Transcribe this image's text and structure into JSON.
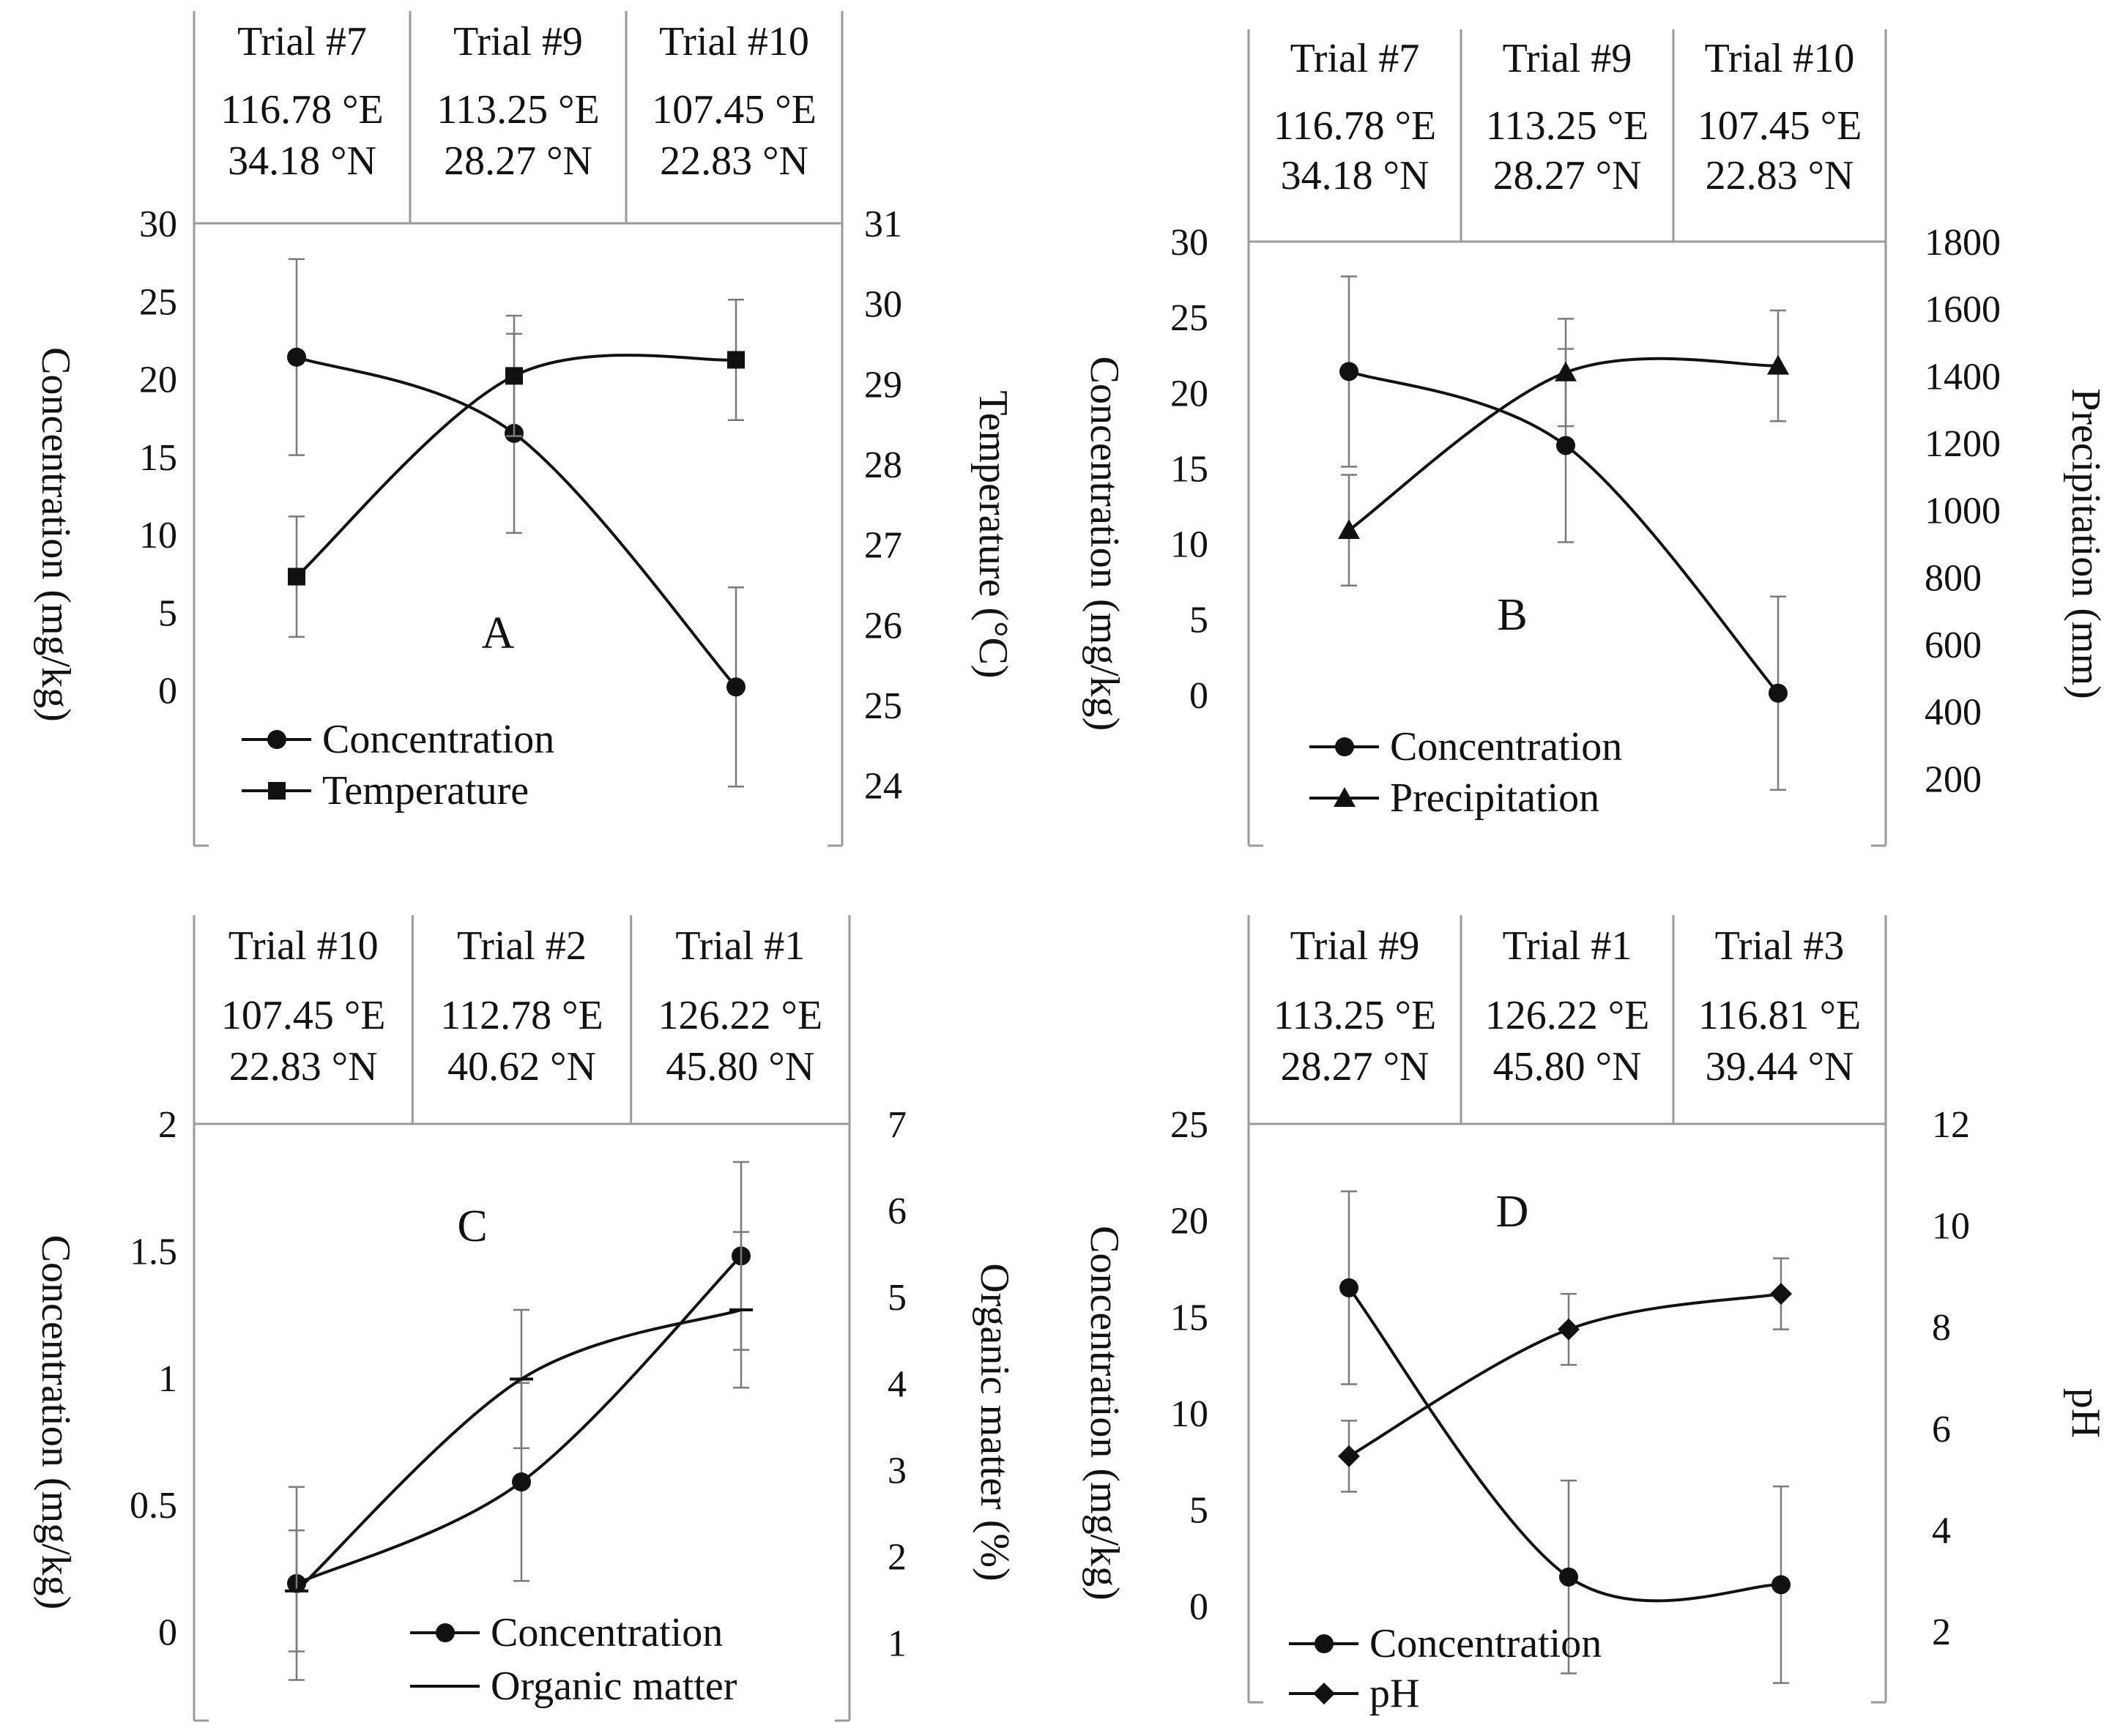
{
  "colors": {
    "ink": "#111111",
    "frame": "#9a9a9a",
    "error": "#7a7a7a",
    "background": "#ffffff"
  },
  "chart_data": [
    {
      "id": "A",
      "type": "line",
      "panel_label": "A",
      "header": {
        "trials": [
          "Trial #7",
          "Trial #9",
          "Trial #10"
        ],
        "longitudes": [
          "116.78 °E",
          "113.25 °E",
          "107.45 °E"
        ],
        "latitudes": [
          "34.18 °N",
          "28.27 °N",
          "22.83 °N"
        ]
      },
      "left_axis": {
        "label": "Concentration (mg/kg)",
        "ylim": [
          -10,
          30
        ],
        "ticks": [
          0,
          5,
          10,
          15,
          20,
          25,
          30
        ],
        "tick_labels": [
          "0",
          "5",
          "10",
          "15",
          "20",
          "25",
          "30"
        ]
      },
      "right_axis": {
        "label": "Temperature (°C)",
        "ylim": [
          23.25,
          31
        ],
        "ticks": [
          24,
          25,
          26,
          27,
          28,
          29,
          30,
          31
        ],
        "tick_labels": [
          "24",
          "25",
          "26",
          "27",
          "28",
          "29",
          "30",
          "31"
        ]
      },
      "series": [
        {
          "name": "Concentration",
          "axis": "left",
          "marker": "circle",
          "values": [
            21.4,
            16.5,
            0.2
          ],
          "errors": [
            6.3,
            6.4,
            6.4
          ]
        },
        {
          "name": "Temperature",
          "axis": "right",
          "marker": "square",
          "values": [
            26.6,
            29.1,
            29.3
          ],
          "errors": [
            0.75,
            0.75,
            0.75
          ]
        }
      ]
    },
    {
      "id": "B",
      "type": "line",
      "panel_label": "B",
      "header": {
        "trials": [
          "Trial #7",
          "Trial #9",
          "Trial #10"
        ],
        "longitudes": [
          "116.78 °E",
          "113.25 °E",
          "107.45 °E"
        ],
        "latitudes": [
          "34.18 °N",
          "28.27 °N",
          "22.83 °N"
        ]
      },
      "left_axis": {
        "label": "Concentration (mg/kg)",
        "ylim": [
          -10,
          30
        ],
        "ticks": [
          0,
          5,
          10,
          15,
          20,
          25,
          30
        ],
        "tick_labels": [
          "0",
          "5",
          "10",
          "15",
          "20",
          "25",
          "30"
        ]
      },
      "right_axis": {
        "label": "Precipitation (mm)",
        "ylim": [
          0,
          1800
        ],
        "ticks": [
          200,
          400,
          600,
          800,
          1000,
          1200,
          1400,
          1600,
          1800
        ],
        "tick_labels": [
          "200",
          "400",
          "600",
          "800",
          "1000",
          "1200",
          "1400",
          "1600",
          "1800"
        ]
      },
      "series": [
        {
          "name": "Concentration",
          "axis": "left",
          "marker": "circle",
          "values": [
            21.4,
            16.5,
            0.1
          ],
          "errors": [
            6.3,
            6.4,
            6.4
          ]
        },
        {
          "name": "Precipitation",
          "axis": "right",
          "marker": "triangle",
          "values": [
            940,
            1410,
            1430
          ],
          "errors": [
            165,
            160,
            165
          ]
        }
      ]
    },
    {
      "id": "C",
      "type": "line",
      "panel_label": "C",
      "header": {
        "trials": [
          "Trial #10",
          "Trial #2",
          "Trial #1"
        ],
        "longitudes": [
          "107.45 °E",
          "112.78 °E",
          "126.22 °E"
        ],
        "latitudes": [
          "22.83 °N",
          "40.62 °N",
          "45.80 °N"
        ]
      },
      "left_axis": {
        "label": "Concentration (mg/kg)",
        "ylim": [
          -0.35,
          2
        ],
        "ticks": [
          0,
          0.5,
          1,
          1.5,
          2
        ],
        "tick_labels": [
          "0",
          "0.5",
          "1",
          "1.5",
          "2"
        ]
      },
      "right_axis": {
        "label": "Organic matter (%)",
        "ylim": [
          0.1,
          7
        ],
        "ticks": [
          1,
          2,
          3,
          4,
          5,
          6,
          7
        ],
        "tick_labels": [
          "1",
          "2",
          "3",
          "4",
          "5",
          "6",
          "7"
        ]
      },
      "series": [
        {
          "name": "Concentration",
          "axis": "left",
          "marker": "circle",
          "values": [
            0.19,
            0.59,
            1.48
          ],
          "errors": [
            0.38,
            0.39,
            0.37
          ]
        },
        {
          "name": "Organic matter",
          "axis": "right",
          "marker": "dash",
          "values": [
            1.6,
            4.05,
            4.85
          ],
          "errors": [
            0.7,
            0.8,
            0.9
          ]
        }
      ]
    },
    {
      "id": "D",
      "type": "line",
      "panel_label": "D",
      "header": {
        "trials": [
          "Trial #9",
          "Trial #1",
          "Trial #3"
        ],
        "longitudes": [
          "113.25 °E",
          "126.22 °E",
          "116.81 °E"
        ],
        "latitudes": [
          "28.27 °N",
          "45.80 °N",
          "39.44 °N"
        ]
      },
      "left_axis": {
        "label": "Concentration (mg/kg)",
        "ylim": [
          -5,
          25
        ],
        "ticks": [
          0,
          5,
          10,
          15,
          20,
          25
        ],
        "tick_labels": [
          "0",
          "5",
          "10",
          "15",
          "20",
          "25"
        ]
      },
      "right_axis": {
        "label": "pH",
        "ylim": [
          0.6,
          12
        ],
        "ticks": [
          2,
          4,
          6,
          8,
          10,
          12
        ],
        "tick_labels": [
          "2",
          "4",
          "6",
          "8",
          "10",
          "12"
        ]
      },
      "series": [
        {
          "name": "Concentration",
          "axis": "left",
          "marker": "circle",
          "values": [
            16.5,
            1.5,
            1.1
          ],
          "errors": [
            5.0,
            5.0,
            5.1
          ]
        },
        {
          "name": "pH",
          "axis": "right",
          "marker": "diamond",
          "values": [
            5.45,
            7.95,
            8.65
          ],
          "errors": [
            0.7,
            0.7,
            0.7
          ]
        }
      ]
    }
  ]
}
